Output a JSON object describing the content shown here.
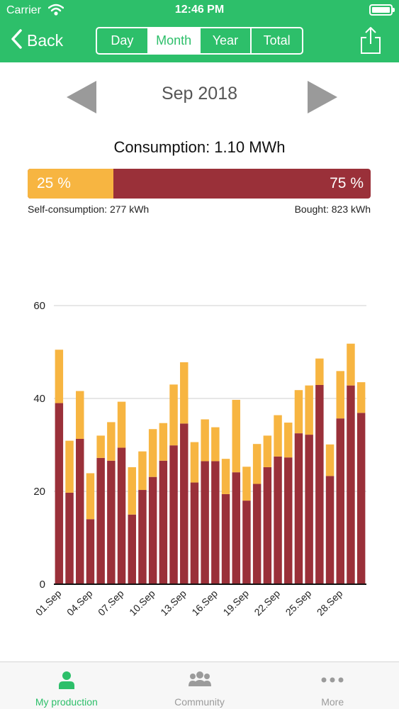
{
  "statusbar": {
    "carrier": "Carrier",
    "time": "12:46 PM"
  },
  "nav": {
    "back_label": "Back",
    "segments": [
      {
        "label": "Day"
      },
      {
        "label": "Month"
      },
      {
        "label": "Year"
      },
      {
        "label": "Total"
      }
    ],
    "active_segment": "Month"
  },
  "period": {
    "label": "Sep 2018"
  },
  "summary": {
    "consumption": "Consumption: 1.10 MWh",
    "self_pct_label": "25 %",
    "bought_pct_label": "75 %",
    "self_fraction": 0.25,
    "self_caption": "Self-consumption: 277 kWh",
    "bought_caption": "Bought: 823 kWh"
  },
  "colors": {
    "brand": "#2dbf6a",
    "self_consumption": "#f7b541",
    "bought": "#9a3039",
    "inactive_tab": "#9b9b9b"
  },
  "chart_data": {
    "type": "bar",
    "stacked": true,
    "ylim": [
      0,
      60
    ],
    "yticks": [
      0,
      20,
      40,
      60
    ],
    "x_tick_labels": [
      "01.Sep",
      "04.Sep",
      "07.Sep",
      "10.Sep",
      "13.Sep",
      "16.Sep",
      "19.Sep",
      "22.Sep",
      "25.Sep",
      "28.Sep"
    ],
    "categories": [
      "01.Sep",
      "02.Sep",
      "03.Sep",
      "04.Sep",
      "05.Sep",
      "06.Sep",
      "07.Sep",
      "08.Sep",
      "09.Sep",
      "10.Sep",
      "11.Sep",
      "12.Sep",
      "13.Sep",
      "14.Sep",
      "15.Sep",
      "16.Sep",
      "17.Sep",
      "18.Sep",
      "19.Sep",
      "20.Sep",
      "21.Sep",
      "22.Sep",
      "23.Sep",
      "24.Sep",
      "25.Sep",
      "26.Sep",
      "27.Sep",
      "28.Sep",
      "29.Sep",
      "30.Sep"
    ],
    "series": [
      {
        "color": "#9a3039",
        "values": [
          39,
          19.7,
          31.3,
          14,
          27.2,
          26.6,
          29.4,
          15,
          20.3,
          23.1,
          26.6,
          29.9,
          34.6,
          21.9,
          26.5,
          26.5,
          19.4,
          24.1,
          18,
          21.6,
          25.2,
          27.5,
          27.3,
          32.5,
          32.2,
          42.9,
          23.3,
          35.7,
          42.8,
          36.9
        ]
      },
      {
        "color": "#f7b541",
        "values": [
          11.5,
          11.2,
          10.3,
          9.9,
          4.8,
          8.3,
          9.9,
          10.2,
          8.3,
          10.3,
          8.1,
          13.1,
          13.2,
          8.7,
          9,
          7.3,
          7.6,
          15.6,
          7.3,
          8.6,
          6.8,
          8.9,
          7.5,
          9.3,
          10.6,
          5.7,
          6.8,
          10.2,
          9,
          6.6
        ]
      }
    ]
  },
  "tabbar": {
    "items": [
      {
        "label": "My production"
      },
      {
        "label": "Community"
      },
      {
        "label": "More"
      }
    ]
  }
}
